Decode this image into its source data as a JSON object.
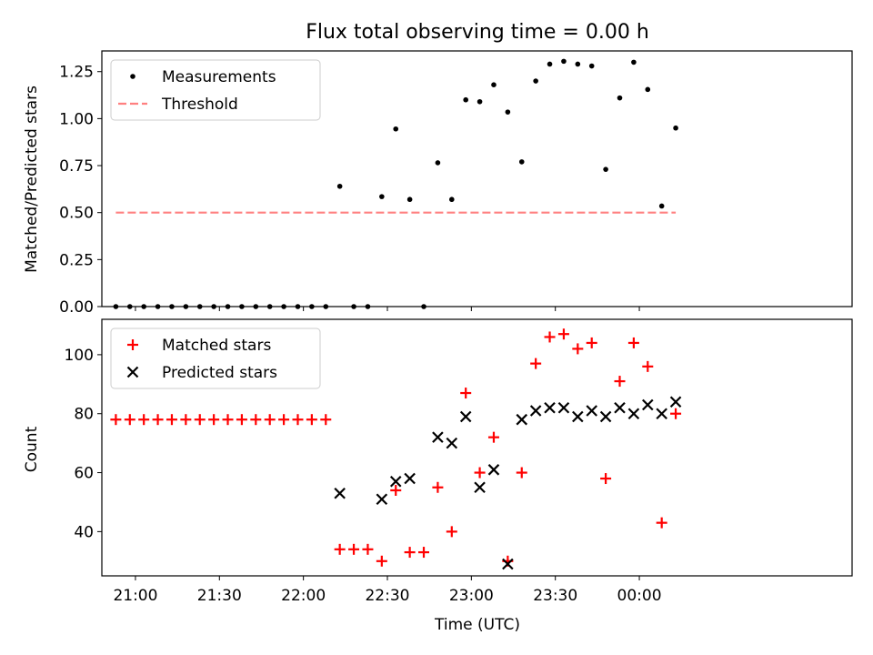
{
  "chart_data": [
    {
      "type": "scatter",
      "title": "Flux total observing time = 0.00 h",
      "ylabel": "Matched/Predicted stars",
      "xlabel": "",
      "xlim": [
        "20:48",
        "01:16"
      ],
      "ylim": [
        0,
        1.36
      ],
      "yticks": [
        "0.00",
        "0.25",
        "0.50",
        "0.75",
        "1.00",
        "1.25"
      ],
      "legend_position": "top-left",
      "series": [
        {
          "name": "Measurements",
          "marker": "dot",
          "color": "#000000",
          "points": [
            [
              "20:53",
              0
            ],
            [
              "20:58",
              0
            ],
            [
              "21:03",
              0
            ],
            [
              "21:08",
              0
            ],
            [
              "21:13",
              0
            ],
            [
              "21:18",
              0
            ],
            [
              "21:23",
              0
            ],
            [
              "21:28",
              0
            ],
            [
              "21:33",
              0
            ],
            [
              "21:38",
              0
            ],
            [
              "21:43",
              0
            ],
            [
              "21:48",
              0
            ],
            [
              "21:53",
              0
            ],
            [
              "21:58",
              0
            ],
            [
              "22:03",
              0
            ],
            [
              "22:08",
              0
            ],
            [
              "22:13",
              0.64
            ],
            [
              "22:18",
              0
            ],
            [
              "22:23",
              0
            ],
            [
              "22:28",
              0.585
            ],
            [
              "22:33",
              0.945
            ],
            [
              "22:38",
              0.57
            ],
            [
              "22:43",
              0
            ],
            [
              "22:48",
              0.765
            ],
            [
              "22:53",
              0.57
            ],
            [
              "22:58",
              1.1
            ],
            [
              "23:03",
              1.09
            ],
            [
              "23:08",
              1.18
            ],
            [
              "23:13",
              1.035
            ],
            [
              "23:18",
              0.77
            ],
            [
              "23:23",
              1.2
            ],
            [
              "23:28",
              1.29
            ],
            [
              "23:33",
              1.305
            ],
            [
              "23:38",
              1.29
            ],
            [
              "23:43",
              1.28
            ],
            [
              "23:48",
              0.73
            ],
            [
              "23:53",
              1.11
            ],
            [
              "23:58",
              1.3
            ],
            [
              "00:03",
              1.155
            ],
            [
              "00:08",
              0.535
            ],
            [
              "00:13",
              0.95
            ]
          ]
        },
        {
          "name": "Threshold",
          "marker": "dashed-line",
          "color": "#ff8080",
          "points": [
            [
              "20:53",
              0.5
            ],
            [
              "00:13",
              0.5
            ]
          ]
        }
      ]
    },
    {
      "type": "scatter",
      "title": "",
      "ylabel": "Count",
      "xlabel": "Time (UTC)",
      "xlim": [
        "20:48",
        "01:16"
      ],
      "ylim": [
        25,
        112
      ],
      "yticks": [
        "40",
        "60",
        "80",
        "100"
      ],
      "xticks": [
        "21:00",
        "21:30",
        "22:00",
        "22:30",
        "23:00",
        "23:30",
        "00:00"
      ],
      "legend_position": "top-left",
      "series": [
        {
          "name": "Matched stars",
          "marker": "plus",
          "color": "#ff0000",
          "points": [
            [
              "20:53",
              78
            ],
            [
              "20:58",
              78
            ],
            [
              "21:03",
              78
            ],
            [
              "21:08",
              78
            ],
            [
              "21:13",
              78
            ],
            [
              "21:18",
              78
            ],
            [
              "21:23",
              78
            ],
            [
              "21:28",
              78
            ],
            [
              "21:33",
              78
            ],
            [
              "21:38",
              78
            ],
            [
              "21:43",
              78
            ],
            [
              "21:48",
              78
            ],
            [
              "21:53",
              78
            ],
            [
              "21:58",
              78
            ],
            [
              "22:03",
              78
            ],
            [
              "22:08",
              78
            ],
            [
              "22:13",
              34
            ],
            [
              "22:18",
              34
            ],
            [
              "22:23",
              34
            ],
            [
              "22:28",
              30
            ],
            [
              "22:33",
              54
            ],
            [
              "22:38",
              33
            ],
            [
              "22:43",
              33
            ],
            [
              "22:48",
              55
            ],
            [
              "22:53",
              40
            ],
            [
              "22:58",
              87
            ],
            [
              "23:03",
              60
            ],
            [
              "23:08",
              72
            ],
            [
              "23:13",
              30
            ],
            [
              "23:18",
              60
            ],
            [
              "23:23",
              97
            ],
            [
              "23:28",
              106
            ],
            [
              "23:33",
              107
            ],
            [
              "23:38",
              102
            ],
            [
              "23:43",
              104
            ],
            [
              "23:48",
              58
            ],
            [
              "23:53",
              91
            ],
            [
              "23:58",
              104
            ],
            [
              "00:03",
              96
            ],
            [
              "00:08",
              43
            ],
            [
              "00:13",
              80
            ]
          ]
        },
        {
          "name": "Predicted stars",
          "marker": "x",
          "color": "#000000",
          "points": [
            [
              "22:13",
              53
            ],
            [
              "22:28",
              51
            ],
            [
              "22:33",
              57
            ],
            [
              "22:38",
              58
            ],
            [
              "22:48",
              72
            ],
            [
              "22:53",
              70
            ],
            [
              "22:58",
              79
            ],
            [
              "23:03",
              55
            ],
            [
              "23:08",
              61
            ],
            [
              "23:13",
              29
            ],
            [
              "23:18",
              78
            ],
            [
              "23:23",
              81
            ],
            [
              "23:28",
              82
            ],
            [
              "23:33",
              82
            ],
            [
              "23:38",
              79
            ],
            [
              "23:43",
              81
            ],
            [
              "23:48",
              79
            ],
            [
              "23:53",
              82
            ],
            [
              "23:58",
              80
            ],
            [
              "00:03",
              83
            ],
            [
              "00:08",
              80
            ],
            [
              "00:13",
              84
            ]
          ]
        }
      ]
    }
  ]
}
